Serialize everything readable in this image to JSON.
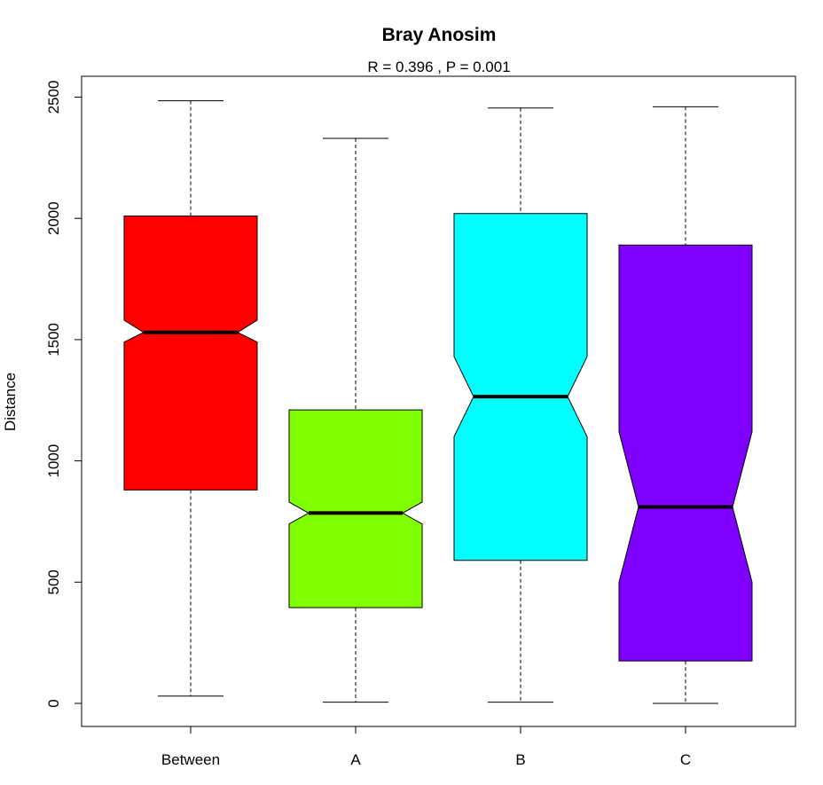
{
  "chart_data": {
    "type": "box",
    "notched": true,
    "title": "Bray Anosim",
    "subtitle": "R =  0.396 ,  P =  0.001",
    "xlabel": "",
    "ylabel": "Distance",
    "ylim": [
      -100,
      2600
    ],
    "yticks": [
      0,
      500,
      1000,
      1500,
      2000,
      2500
    ],
    "categories": [
      "Between",
      "A",
      "B",
      "C"
    ],
    "colors": [
      "#FF0000",
      "#80FF00",
      "#00FFFF",
      "#8000FF"
    ],
    "boxes": [
      {
        "name": "Between",
        "whisker_low": 30,
        "q1": 880,
        "median": 1530,
        "q3": 2010,
        "whisker_high": 2485,
        "notch_low": 1490,
        "notch_high": 1580
      },
      {
        "name": "A",
        "whisker_low": 5,
        "q1": 395,
        "median": 785,
        "q3": 1210,
        "whisker_high": 2330,
        "notch_low": 740,
        "notch_high": 830
      },
      {
        "name": "B",
        "whisker_low": 5,
        "q1": 590,
        "median": 1265,
        "q3": 2020,
        "whisker_high": 2455,
        "notch_low": 1100,
        "notch_high": 1430
      },
      {
        "name": "C",
        "whisker_low": 0,
        "q1": 175,
        "median": 810,
        "q3": 1890,
        "whisker_high": 2460,
        "notch_low": 500,
        "notch_high": 1120
      }
    ]
  }
}
